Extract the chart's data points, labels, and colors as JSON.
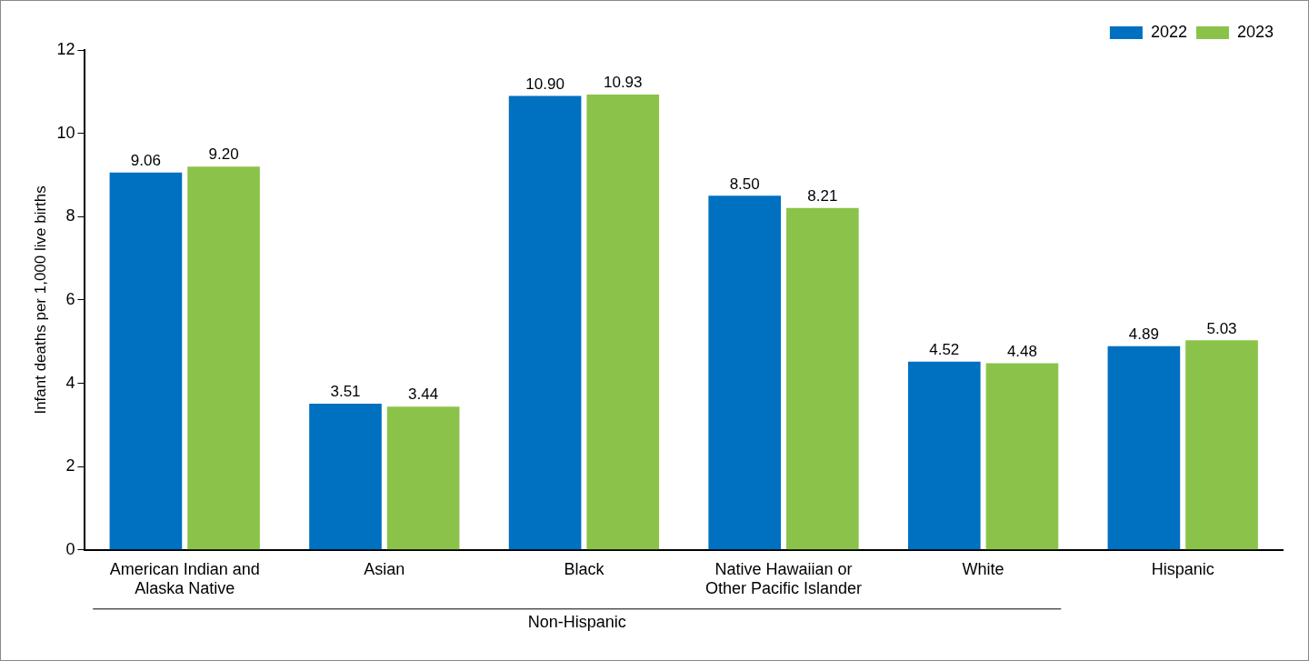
{
  "chart_data": {
    "type": "bar",
    "ylabel": "Infant deaths per 1,000 live births",
    "categories": [
      "American Indian and Alaska Native",
      "Asian",
      "Black",
      "Native Hawaiian or Other Pacific Islander",
      "White",
      "Hispanic"
    ],
    "series": [
      {
        "name": "2022",
        "color": "#0070c0",
        "values": [
          9.06,
          3.51,
          10.9,
          8.5,
          4.52,
          4.89
        ],
        "value_labels": [
          "9.06",
          "3.51",
          "10.90",
          "8.50",
          "4.52",
          "4.89"
        ]
      },
      {
        "name": "2023",
        "color": "#8bc34a",
        "values": [
          9.2,
          3.44,
          10.93,
          8.21,
          4.48,
          5.03
        ],
        "value_labels": [
          "9.20",
          "3.44",
          "10.93",
          "8.21",
          "4.48",
          "5.03"
        ]
      }
    ],
    "ylim": [
      0,
      12
    ],
    "yticks": [
      0,
      2,
      4,
      6,
      8,
      10,
      12
    ],
    "grid": false,
    "legend": "top right",
    "annotations": [
      "Non-Hispanic"
    ]
  }
}
